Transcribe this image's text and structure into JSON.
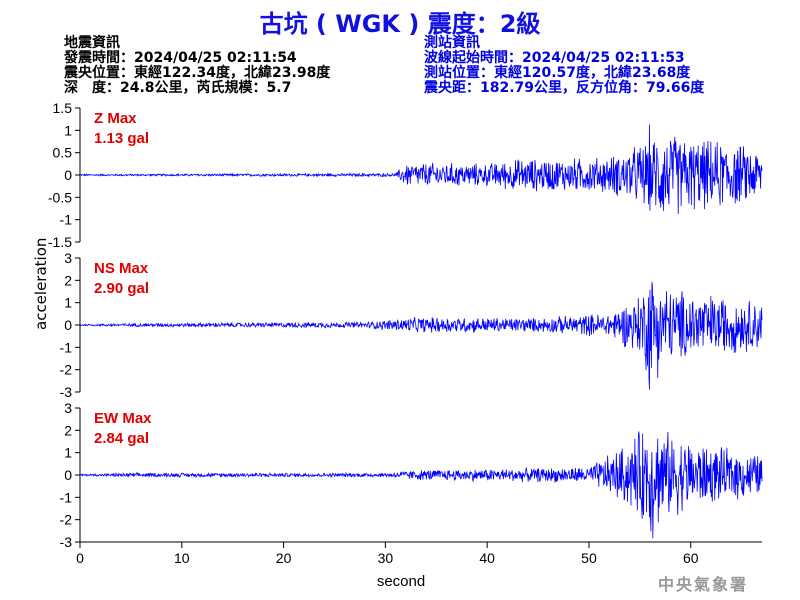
{
  "title": "古坑 ( WGK ) 震度：2級",
  "event_info": {
    "heading": "地震資訊",
    "origin_time": "發震時間：2024/04/25 02:11:54",
    "epicenter": "震央位置：東經122.34度，北緯23.98度",
    "depth_magnitude": "深　度：24.8公里，芮氏規模：5.7"
  },
  "station_info": {
    "heading": "測站資訊",
    "wave_start": "波線起始時間：2024/04/25 02:11:53",
    "station_position": "測站位置：東經120.57度，北緯23.68度",
    "distance_azimuth": "震央距：182.79公里，反方位角：79.66度"
  },
  "watermark": "中央氣象署",
  "chart_data": {
    "type": "line",
    "xlabel": "second",
    "ylabel": "acceleration",
    "xlim": [
      0,
      67
    ],
    "xticks": [
      0,
      10,
      20,
      30,
      40,
      50,
      60
    ],
    "line_color": "#0000ff",
    "label_color": "#e00000",
    "panels": [
      {
        "name": "Z",
        "label": "Z Max",
        "max_label": "1.13 gal",
        "max_gal": 1.13,
        "ylim": [
          -1.5,
          1.5
        ],
        "yticks": [
          1.5,
          1,
          0.5,
          0,
          -0.5,
          -1,
          -1.5
        ],
        "envelope": {
          "seconds": [
            0,
            31,
            32,
            35,
            40,
            43,
            47,
            52,
            55,
            57,
            60,
            64,
            67
          ],
          "amplitude": [
            0.02,
            0.04,
            0.3,
            0.3,
            0.28,
            0.4,
            0.4,
            0.45,
            0.75,
            1.1,
            0.9,
            0.8,
            0.6
          ]
        }
      },
      {
        "name": "NS",
        "label": "NS Max",
        "max_label": "2.90 gal",
        "max_gal": 2.9,
        "ylim": [
          -3,
          3
        ],
        "yticks": [
          3,
          2,
          1,
          0,
          -1,
          -2,
          -3
        ],
        "envelope": {
          "seconds": [
            0,
            5,
            28,
            32,
            35,
            45,
            52,
            55,
            56,
            58,
            62,
            67
          ],
          "amplitude": [
            0.04,
            0.08,
            0.15,
            0.35,
            0.4,
            0.35,
            0.6,
            1.5,
            2.9,
            1.8,
            1.5,
            1.2
          ]
        }
      },
      {
        "name": "EW",
        "label": "EW Max",
        "max_label": "2.84 gal",
        "max_gal": 2.84,
        "ylim": [
          -3,
          3
        ],
        "yticks": [
          3,
          2,
          1,
          0,
          -1,
          -2,
          -3
        ],
        "envelope": {
          "seconds": [
            0,
            5,
            30,
            33,
            40,
            50,
            54,
            56,
            58,
            62,
            67
          ],
          "amplitude": [
            0.04,
            0.1,
            0.1,
            0.25,
            0.3,
            0.4,
            1.6,
            2.84,
            2.0,
            1.4,
            1.0
          ]
        }
      }
    ]
  }
}
